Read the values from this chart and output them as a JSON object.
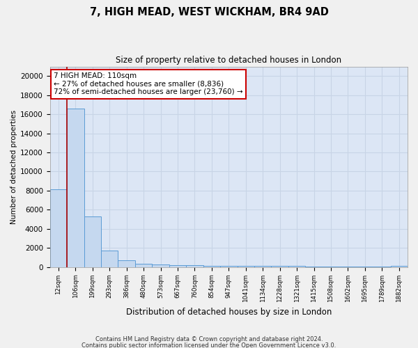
{
  "title": "7, HIGH MEAD, WEST WICKHAM, BR4 9AD",
  "subtitle": "Size of property relative to detached houses in London",
  "xlabel": "Distribution of detached houses by size in London",
  "ylabel": "Number of detached properties",
  "categories": [
    "12sqm",
    "106sqm",
    "199sqm",
    "293sqm",
    "386sqm",
    "480sqm",
    "573sqm",
    "667sqm",
    "760sqm",
    "854sqm",
    "947sqm",
    "1041sqm",
    "1134sqm",
    "1228sqm",
    "1321sqm",
    "1415sqm",
    "1508sqm",
    "1602sqm",
    "1695sqm",
    "1789sqm",
    "1882sqm"
  ],
  "values": [
    8100,
    16600,
    5300,
    1750,
    700,
    350,
    280,
    220,
    170,
    150,
    130,
    110,
    100,
    90,
    80,
    70,
    60,
    55,
    50,
    45,
    150
  ],
  "bar_color": "#c5d8ef",
  "bar_edge_color": "#5b9bd5",
  "plot_bg_color": "#dce6f5",
  "grid_color": "#c8d4e6",
  "fig_bg_color": "#f0f0f0",
  "property_line_color": "#aa0000",
  "annotation_text": "7 HIGH MEAD: 110sqm\n← 27% of detached houses are smaller (8,836)\n72% of semi-detached houses are larger (23,760) →",
  "annotation_box_facecolor": "#ffffff",
  "annotation_box_edgecolor": "#cc0000",
  "ylim": [
    0,
    21000
  ],
  "yticks": [
    0,
    2000,
    4000,
    6000,
    8000,
    10000,
    12000,
    14000,
    16000,
    18000,
    20000
  ],
  "footnote1": "Contains HM Land Registry data © Crown copyright and database right 2024.",
  "footnote2": "Contains public sector information licensed under the Open Government Licence v3.0."
}
